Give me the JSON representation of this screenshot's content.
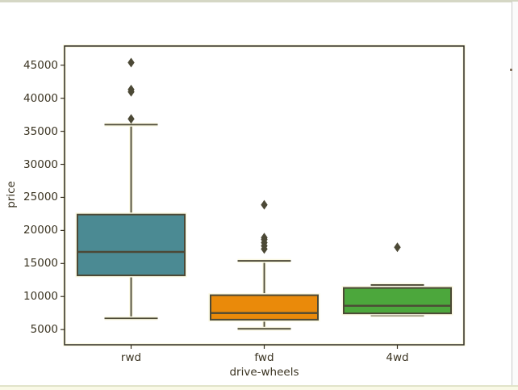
{
  "page": {
    "background": "#ffffff",
    "top_border_color": "#d5d7c5",
    "bottom_rule_color": "#e1e3c9",
    "bottom_strip_color": "#f9f9e6",
    "right_rule_color": "#cacaca",
    "right_speck_color": "#7d6a56"
  },
  "chart_data": {
    "type": "boxplot",
    "title": "",
    "xlabel": "drive-wheels",
    "ylabel": "price",
    "categories": [
      "rwd",
      "fwd",
      "4wd"
    ],
    "ylim": [
      2700,
      47900
    ],
    "yticks": [
      5000,
      10000,
      15000,
      20000,
      25000,
      30000,
      35000,
      40000,
      45000
    ],
    "grid": false,
    "legend": "none",
    "series": [
      {
        "category": "rwd",
        "box_color": "#4b8a93",
        "whisker_low": 6700,
        "q1": 13200,
        "median": 16750,
        "q3": 22400,
        "whisker_high": 36000,
        "outliers": [
          36880,
          40960,
          41315,
          45400
        ]
      },
      {
        "category": "fwd",
        "box_color": "#ea8a0a",
        "whisker_low": 5118,
        "q1": 6500,
        "median": 7500,
        "q3": 10200,
        "whisker_high": 15400,
        "outliers": [
          17199,
          17669,
          18150,
          18620,
          18920,
          23875
        ]
      },
      {
        "category": "4wd",
        "box_color": "#4ca73c",
        "whisker_low": 7150,
        "q1": 7450,
        "median": 8600,
        "q3": 11300,
        "whisker_high": 11750,
        "outliers": [
          17450
        ]
      }
    ],
    "colors": {
      "frame": "#2e2b22",
      "box_edge": "#4c4936",
      "whisker": "#4c4936",
      "flier": "#4c4936",
      "halo": "#faf8e2",
      "text": "#3a3321",
      "plot_background": "#ffffff"
    }
  }
}
